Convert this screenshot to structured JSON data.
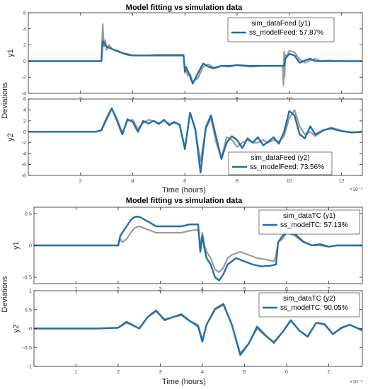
{
  "chart_data": [
    {
      "type": "line",
      "title": "Model fitting vs simulation data",
      "ylabel": "Deviations",
      "xlabel": "Time (hours)",
      "x_multiplier": "×10⁻³",
      "xlim": [
        0,
        12.8
      ],
      "xticks": [
        2,
        4,
        6,
        8,
        10,
        12
      ],
      "panels": [
        {
          "ylabel": "y1",
          "ylim": [
            -4,
            6
          ],
          "yticks": [
            -4,
            -2,
            0,
            2,
            4,
            6
          ],
          "legend": "top-right",
          "series": [
            {
              "name": "sim_dataFeed (y1)",
              "color": "#9a9a9a",
              "x": [
                0,
                2.8,
                2.85,
                2.9,
                2.95,
                3.0,
                3.1,
                3.2,
                3.4,
                3.6,
                3.8,
                4.0,
                4.5,
                5.0,
                5.5,
                5.95,
                6.0,
                6.05,
                6.1,
                6.2,
                6.3,
                6.5,
                6.7,
                6.9,
                7.1,
                7.4,
                7.7,
                8.0,
                8.5,
                9.0,
                9.5,
                9.75,
                9.78,
                9.8,
                9.82,
                9.85,
                9.9,
                10.0,
                10.2,
                10.4,
                10.6,
                10.8,
                11.0,
                11.2,
                11.5,
                12.0,
                12.5,
                12.8
              ],
              "y": [
                0,
                0,
                4.6,
                1.8,
                2.6,
                1.4,
                2.0,
                1.5,
                1.2,
                1.0,
                0.9,
                0.7,
                0.7,
                0.8,
                0.8,
                0.8,
                -1.5,
                -0.7,
                -1.8,
                -1.6,
                -2.6,
                -2.1,
                -0.7,
                -0.4,
                -0.8,
                -0.6,
                -0.7,
                -0.5,
                -0.7,
                -0.6,
                -0.6,
                -0.6,
                -3.0,
                1.2,
                -2.0,
                0.8,
                0.5,
                1.3,
                1.1,
                0.2,
                -0.2,
                0.1,
                0.3,
                0.0,
                0.1,
                0.0,
                0.0,
                0.0
              ]
            },
            {
              "name": "ss_modelFeed: 57.87%",
              "color": "#1f6ead",
              "x": [
                0,
                2.8,
                2.85,
                3.0,
                3.2,
                3.4,
                3.6,
                3.8,
                4.0,
                4.5,
                5.0,
                5.5,
                5.95,
                6.0,
                6.05,
                6.15,
                6.3,
                6.5,
                6.7,
                6.9,
                7.1,
                7.4,
                7.7,
                8.0,
                8.5,
                9.0,
                9.5,
                9.8,
                9.85,
                10.0,
                10.2,
                10.4,
                10.6,
                10.8,
                11.0,
                11.5,
                12.0,
                12.8
              ],
              "y": [
                0,
                0,
                2.5,
                1.8,
                1.5,
                1.3,
                1.0,
                0.8,
                0.7,
                0.7,
                0.7,
                0.7,
                0.7,
                -1.3,
                -0.8,
                -1.5,
                -2.8,
                -1.5,
                -0.3,
                -0.7,
                -0.9,
                -0.6,
                -0.6,
                -0.5,
                -0.6,
                -0.6,
                -0.6,
                -0.6,
                0.3,
                0.9,
                0.7,
                -0.2,
                0.1,
                0.3,
                0.0,
                0.0,
                0.0,
                0.0
              ]
            }
          ]
        },
        {
          "ylabel": "y2",
          "ylim": [
            -8,
            6
          ],
          "yticks": [
            -8,
            -6,
            -4,
            -2,
            0,
            2,
            4,
            6
          ],
          "legend": "bottom-right",
          "series": [
            {
              "name": "sim_dataFeed (y2)",
              "color": "#9a9a9a",
              "x": [
                0,
                2.6,
                2.8,
                3.0,
                3.2,
                3.4,
                3.6,
                3.8,
                4.0,
                4.2,
                4.4,
                4.6,
                4.8,
                5.0,
                5.2,
                5.4,
                5.6,
                5.8,
                6.0,
                6.2,
                6.4,
                6.6,
                6.8,
                7.0,
                7.2,
                7.4,
                7.6,
                7.8,
                8.0,
                8.2,
                8.4,
                8.6,
                8.8,
                9.0,
                9.2,
                9.4,
                9.6,
                9.8,
                10.0,
                10.2,
                10.4,
                10.6,
                10.8,
                11.0,
                11.3,
                11.6,
                12.0,
                12.4,
                12.8
              ],
              "y": [
                0,
                0,
                0.2,
                2.2,
                4.2,
                2.4,
                -0.2,
                2.0,
                2.2,
                0.5,
                1.6,
                2.2,
                2.0,
                1.6,
                2.0,
                1.5,
                1.6,
                1.4,
                -3.0,
                3.5,
                0.2,
                -5.5,
                0.5,
                2.5,
                -2.0,
                -4.8,
                -1.0,
                -1.5,
                -2.8,
                -2.0,
                -1.5,
                -2.0,
                -2.0,
                -1.5,
                -2.0,
                -1.5,
                -1.8,
                -0.8,
                2.5,
                4.0,
                1.0,
                -0.5,
                0.0,
                -0.8,
                0.2,
                0.8,
                0.2,
                -0.2,
                0.0
              ]
            },
            {
              "name": "ss_modelFeed: 73.56%",
              "color": "#1f6ead",
              "x": [
                0,
                2.6,
                2.8,
                3.0,
                3.2,
                3.4,
                3.6,
                3.8,
                4.0,
                4.2,
                4.4,
                4.6,
                4.8,
                5.0,
                5.2,
                5.4,
                5.6,
                5.8,
                6.0,
                6.2,
                6.4,
                6.6,
                6.8,
                7.0,
                7.2,
                7.4,
                7.6,
                7.8,
                8.0,
                8.2,
                8.4,
                8.6,
                8.8,
                9.0,
                9.2,
                9.4,
                9.6,
                9.8,
                10.0,
                10.2,
                10.4,
                10.6,
                10.8,
                11.0,
                11.3,
                11.6,
                12.0,
                12.4,
                12.8
              ],
              "y": [
                0,
                0,
                0.3,
                2.5,
                4.3,
                2.0,
                -0.5,
                2.3,
                1.8,
                0.0,
                2.0,
                1.5,
                2.0,
                1.4,
                2.2,
                1.2,
                1.8,
                1.2,
                -3.2,
                3.5,
                0.5,
                -7.5,
                0.8,
                3.0,
                -1.0,
                -5.0,
                -2.0,
                -0.8,
                -1.5,
                -3.0,
                -1.2,
                -2.0,
                -1.0,
                -2.5,
                -1.8,
                -1.0,
                -2.2,
                0.0,
                3.8,
                3.0,
                -0.5,
                -1.2,
                1.0,
                -0.5,
                0.3,
                0.6,
                0.1,
                -0.1,
                0.0
              ]
            }
          ]
        }
      ]
    },
    {
      "type": "line",
      "title": "Model fitting vs simulation data",
      "ylabel": "Deviations",
      "xlabel": "Time (hours)",
      "x_multiplier": "×10⁻³",
      "xlim": [
        0,
        7.8
      ],
      "xticks": [
        1,
        2,
        3,
        4,
        5,
        6,
        7
      ],
      "panels": [
        {
          "ylabel": "y1",
          "ylim": [
            -0.6,
            0.6
          ],
          "yticks": [
            -0.5,
            0,
            0.5
          ],
          "legend": "top-right",
          "series": [
            {
              "name": "sim_dataTC (y1)",
              "color": "#9a9a9a",
              "x": [
                0,
                2.0,
                2.05,
                2.1,
                2.2,
                2.3,
                2.4,
                2.5,
                2.7,
                2.9,
                3.1,
                3.3,
                3.5,
                3.7,
                3.9,
                3.95,
                4.0,
                4.05,
                4.1,
                4.2,
                4.3,
                4.4,
                4.5,
                4.6,
                4.7,
                4.9,
                5.1,
                5.3,
                5.5,
                5.7,
                5.75,
                5.8,
                5.9,
                6.0,
                6.2,
                6.4,
                6.6,
                6.8,
                7.0,
                7.2,
                7.4,
                7.6,
                7.8
              ],
              "y": [
                0,
                0,
                0.1,
                0.05,
                0.1,
                0.2,
                0.28,
                0.3,
                0.25,
                0.2,
                0.2,
                0.2,
                0.2,
                0.23,
                0.25,
                0.0,
                0.2,
                0.0,
                -0.1,
                -0.2,
                -0.38,
                -0.42,
                -0.35,
                -0.2,
                -0.15,
                -0.1,
                -0.15,
                -0.2,
                -0.22,
                -0.25,
                -0.15,
                0.05,
                0.1,
                0.2,
                0.15,
                0.05,
                0.0,
                0.0,
                -0.02,
                0.0,
                0.0,
                0.0,
                0.0
              ]
            },
            {
              "name": "ss_modelTC: 57.13%",
              "color": "#1f6ead",
              "x": [
                0,
                2.0,
                2.05,
                2.1,
                2.2,
                2.3,
                2.4,
                2.5,
                2.7,
                2.9,
                3.1,
                3.3,
                3.5,
                3.7,
                3.9,
                3.95,
                4.0,
                4.05,
                4.1,
                4.2,
                4.3,
                4.4,
                4.5,
                4.6,
                4.8,
                5.0,
                5.2,
                5.4,
                5.6,
                5.75,
                5.8,
                5.9,
                6.0,
                6.2,
                6.4,
                6.6,
                6.8,
                7.0,
                7.2,
                7.4,
                7.6,
                7.8
              ],
              "y": [
                0,
                0,
                0.15,
                0.2,
                0.3,
                0.4,
                0.45,
                0.45,
                0.38,
                0.3,
                0.3,
                0.3,
                0.3,
                0.33,
                0.33,
                -0.1,
                0.15,
                -0.05,
                -0.2,
                -0.3,
                -0.5,
                -0.55,
                -0.45,
                -0.3,
                -0.2,
                -0.25,
                -0.3,
                -0.33,
                -0.32,
                -0.3,
                0.05,
                0.15,
                0.2,
                0.18,
                0.06,
                0.0,
                0.02,
                -0.02,
                0.0,
                0.0,
                0.0,
                0.0
              ]
            }
          ]
        },
        {
          "ylabel": "y2",
          "ylim": [
            -1,
            1
          ],
          "yticks": [
            -1,
            -0.5,
            0,
            0.5,
            1
          ],
          "legend": "top-right",
          "series": [
            {
              "name": "sim_dataTC (y2)",
              "color": "#9a9a9a",
              "x": [
                0,
                1.5,
                2.0,
                2.2,
                2.5,
                2.7,
                2.9,
                3.1,
                3.3,
                3.5,
                3.7,
                3.9,
                4.0,
                4.1,
                4.3,
                4.5,
                4.7,
                4.9,
                5.1,
                5.3,
                5.5,
                5.7,
                5.9,
                6.1,
                6.3,
                6.5,
                6.7,
                6.9,
                7.1,
                7.3,
                7.5,
                7.7,
                7.8
              ],
              "y": [
                0,
                0,
                0.02,
                0.15,
                0.0,
                0.3,
                0.45,
                0.25,
                0.3,
                0.35,
                0.2,
                0.1,
                -0.3,
                0.1,
                0.5,
                0.62,
                0.1,
                -0.65,
                -0.4,
                0.0,
                -0.2,
                -0.35,
                -0.1,
                0.2,
                -0.05,
                -0.2,
                0.15,
                0.1,
                -0.15,
                0.0,
                0.1,
                0.0,
                -0.05
              ]
            },
            {
              "name": "ss_modelTC: 90.05%",
              "color": "#1f6ead",
              "x": [
                0,
                1.5,
                2.0,
                2.2,
                2.5,
                2.7,
                2.9,
                3.1,
                3.3,
                3.5,
                3.7,
                3.9,
                4.0,
                4.1,
                4.3,
                4.5,
                4.7,
                4.9,
                5.1,
                5.3,
                5.5,
                5.7,
                5.9,
                6.1,
                6.3,
                6.5,
                6.7,
                6.9,
                7.1,
                7.3,
                7.5,
                7.7,
                7.8
              ],
              "y": [
                0,
                0,
                0.02,
                0.18,
                0.0,
                0.3,
                0.48,
                0.22,
                0.3,
                0.38,
                0.2,
                0.05,
                -0.35,
                0.1,
                0.52,
                0.65,
                0.1,
                -0.7,
                -0.4,
                0.05,
                -0.18,
                -0.38,
                -0.1,
                0.22,
                -0.05,
                -0.22,
                0.15,
                0.12,
                -0.15,
                0.02,
                0.1,
                0.0,
                -0.05
              ]
            }
          ]
        }
      ]
    }
  ]
}
